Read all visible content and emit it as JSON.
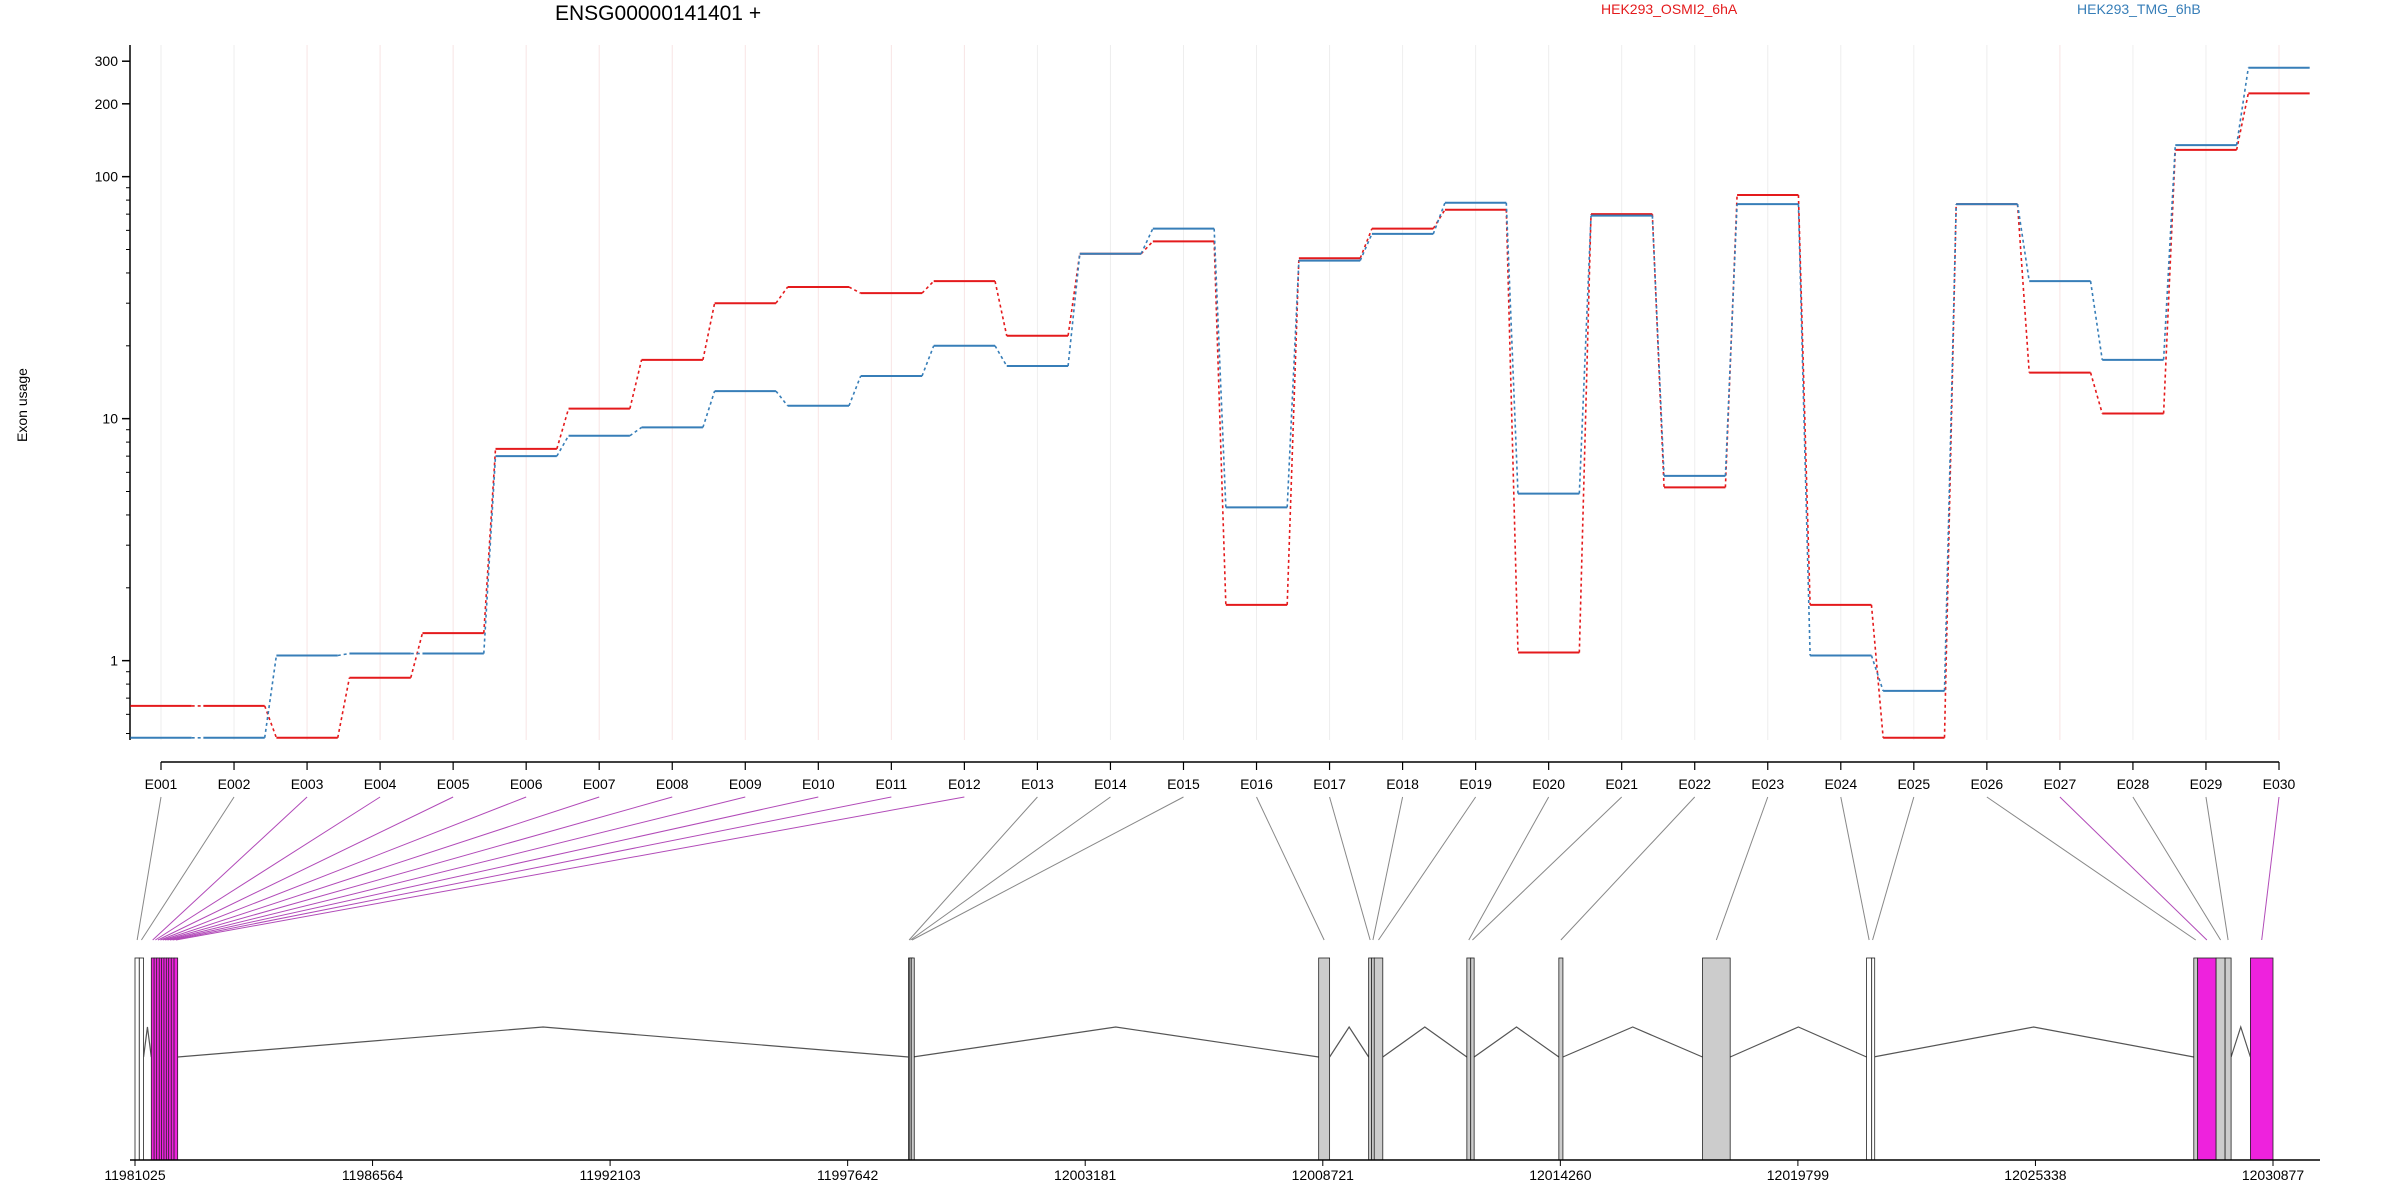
{
  "chart_data": {
    "type": "line",
    "title": "ENSG00000141401 +",
    "ylabel": "Exon usage",
    "yscale": "log",
    "yticks": [
      1,
      10,
      100,
      200,
      300
    ],
    "ylim": [
      0.47,
      350
    ],
    "grid": true,
    "legend_position": "top",
    "categories": [
      "E001",
      "E002",
      "E003",
      "E004",
      "E005",
      "E006",
      "E007",
      "E008",
      "E009",
      "E010",
      "E011",
      "E012",
      "E013",
      "E014",
      "E015",
      "E016",
      "E017",
      "E018",
      "E019",
      "E020",
      "E021",
      "E022",
      "E023",
      "E024",
      "E025",
      "E026",
      "E027",
      "E028",
      "E029",
      "E030"
    ],
    "highlighted_exons": [
      "E003",
      "E004",
      "E005",
      "E006",
      "E007",
      "E008",
      "E009",
      "E010",
      "E011",
      "E012",
      "E027",
      "E030"
    ],
    "series": [
      {
        "name": "HEK293_OSMI2_6hA",
        "color": "#e41a1c",
        "values": [
          0.65,
          0.65,
          0.48,
          0.85,
          1.3,
          7.5,
          11,
          17.5,
          30,
          35,
          33,
          37,
          22,
          48,
          54,
          1.7,
          46,
          61,
          73,
          1.08,
          70,
          5.2,
          84,
          1.7,
          0.48,
          77,
          15.5,
          10.5,
          129,
          221
        ]
      },
      {
        "name": "HEK293_TMG_6hB",
        "color": "#377eb8",
        "values": [
          0.48,
          0.48,
          1.05,
          1.07,
          1.07,
          7.0,
          8.5,
          9.2,
          13,
          11.3,
          15,
          20,
          16.5,
          48,
          61,
          4.3,
          45,
          58,
          78,
          4.9,
          69,
          5.8,
          77,
          1.05,
          0.75,
          77,
          37,
          17.5,
          135,
          282
        ]
      }
    ],
    "gene_model": {
      "coordinate_ticks": [
        "11981025",
        "11986564",
        "11992103",
        "11997642",
        "12003181",
        "12008721",
        "12014260",
        "12019799",
        "12025338",
        "12030877"
      ]
    }
  }
}
